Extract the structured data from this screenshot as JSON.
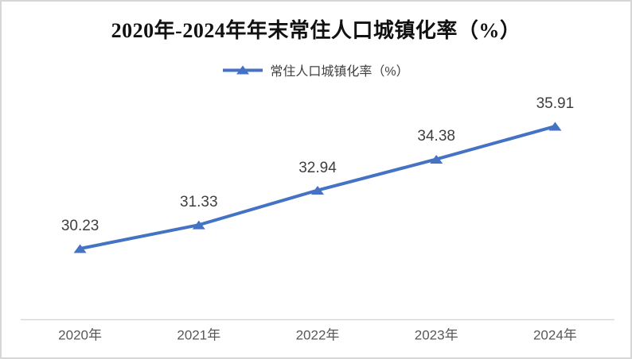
{
  "title": "2020年-2024年年末常住人口城镇化率（%）",
  "legend": {
    "label": "常住人口城镇化率（%）"
  },
  "colors": {
    "accent": "#4472C4",
    "axis_line": "#D9D9D9",
    "data_label": "#3F3F3F",
    "tick_label": "#595959",
    "title": "#111111",
    "border": "#D6D6D6"
  },
  "chart_data": {
    "type": "line",
    "title": "2020年-2024年年末常住人口城镇化率（%）",
    "categories": [
      "2020年",
      "2021年",
      "2022年",
      "2023年",
      "2024年"
    ],
    "series": [
      {
        "name": "常住人口城镇化率（%）",
        "values": [
          30.23,
          31.33,
          32.94,
          34.38,
          35.91
        ],
        "data_labels": [
          "30.23",
          "31.33",
          "32.94",
          "34.38",
          "35.91"
        ]
      }
    ],
    "xlabel": "",
    "ylabel": "",
    "ylim": [
      27,
      37.5
    ],
    "grid": false,
    "legend_position": "top-center",
    "marker": "triangle-up"
  }
}
